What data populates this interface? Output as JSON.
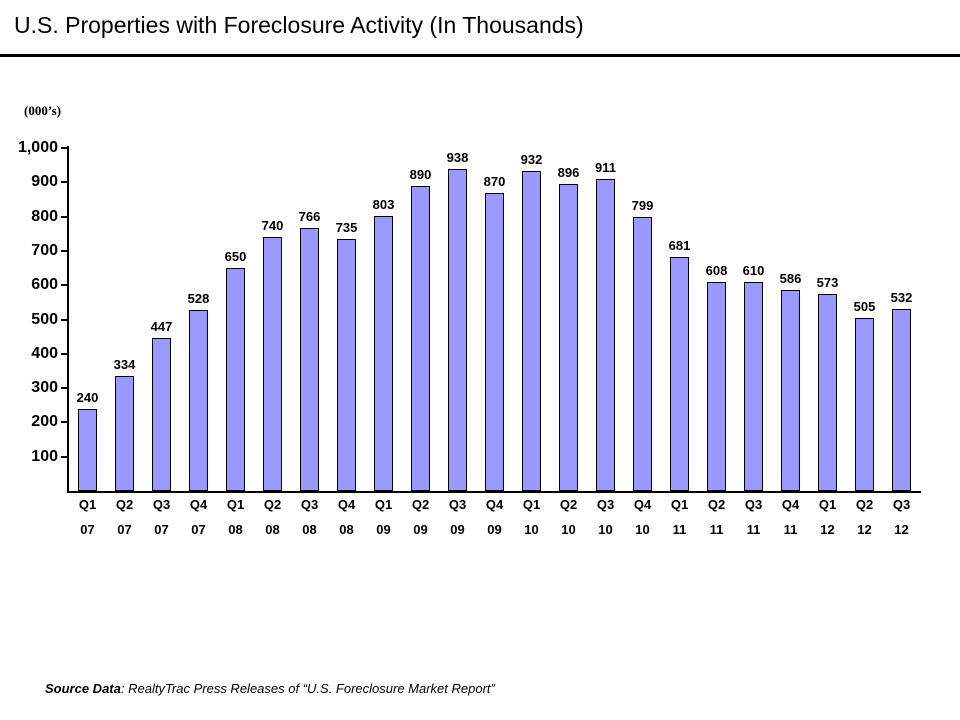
{
  "chart_data": {
    "type": "bar",
    "title": "U.S. Properties with Foreclosure Activity (In Thousands)",
    "categories": [
      "Q1 07",
      "Q2 07",
      "Q3 07",
      "Q4 07",
      "Q1 08",
      "Q2 08",
      "Q3 08",
      "Q4 08",
      "Q1 09",
      "Q2 09",
      "Q3 09",
      "Q4 09",
      "Q1 10",
      "Q2 10",
      "Q3 10",
      "Q4 10",
      "Q1 11",
      "Q2 11",
      "Q3 11",
      "Q4 11",
      "Q1 12",
      "Q2 12",
      "Q3 12"
    ],
    "values": [
      240,
      334,
      447,
      528,
      650,
      740,
      766,
      735,
      803,
      890,
      938,
      870,
      932,
      896,
      911,
      799,
      681,
      608,
      610,
      586,
      573,
      505,
      532
    ],
    "ylabel": "(000’s)",
    "ylim": [
      0,
      1000
    ],
    "ytick_step": 100,
    "ytick_labels": [
      "100",
      "200",
      "300",
      "400",
      "500",
      "600",
      "700",
      "800",
      "900",
      "1,000"
    ],
    "grid": false,
    "legend": "none",
    "data_labels": true,
    "bar_color": "#9999FF",
    "bar_border_color": "#000000",
    "axis_color": "#000000"
  },
  "source": {
    "label": "Source Data",
    "text": ": RealtyTrac Press Releases of “U.S. Foreclosure Market Report”"
  }
}
